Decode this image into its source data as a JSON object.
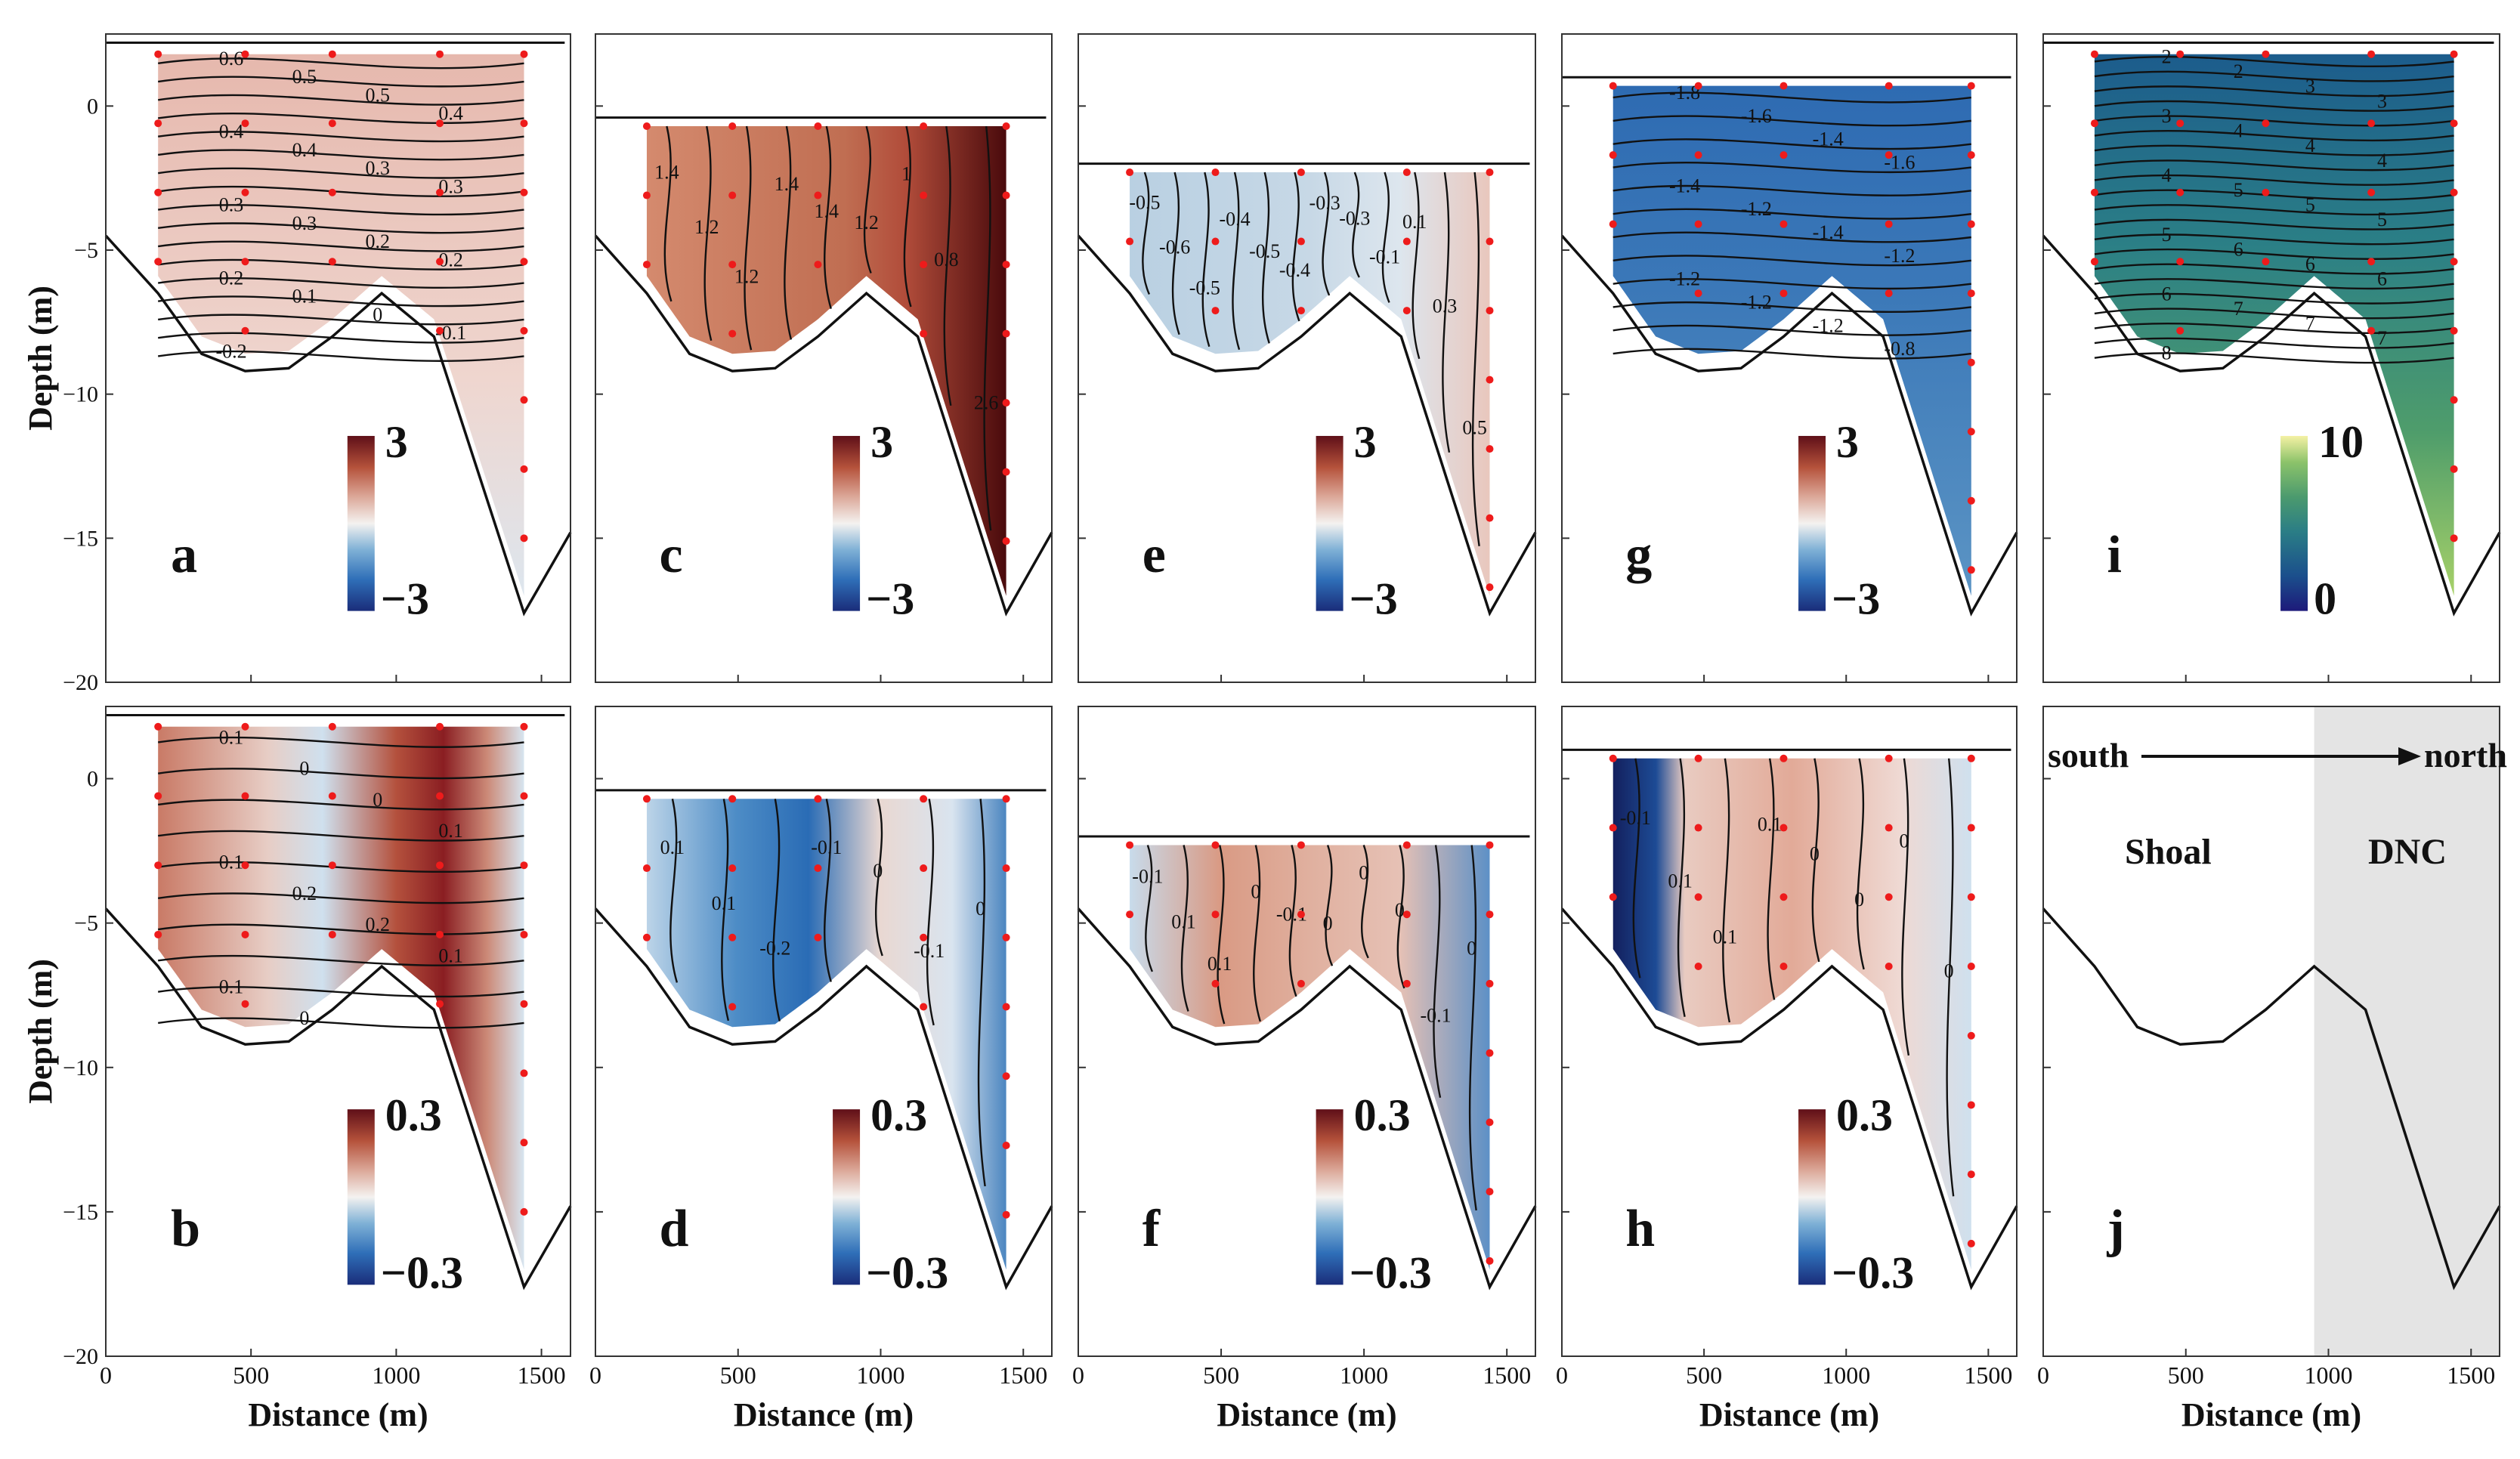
{
  "chart_data": [
    {
      "id": "a",
      "label": "a",
      "type": "heatmap",
      "section": "section-1",
      "water_level": 2.2,
      "variable": "diverging",
      "cbar": {
        "max": "3",
        "min": "−3"
      },
      "contour_labels": [
        "0.6",
        "0.5",
        "0.5",
        "0.4",
        "0.4",
        "0.4",
        "0.3",
        "0.3",
        "0.3",
        "0.3",
        "0.2",
        "0.2",
        "0.2",
        "0.1",
        "0",
        "-0.1",
        "-0.2"
      ]
    },
    {
      "id": "b",
      "label": "b",
      "type": "heatmap",
      "section": "section-1",
      "water_level": 2.2,
      "variable": "diverging-small",
      "cbar": {
        "max": "0.3",
        "min": "−0.3"
      },
      "contour_labels": [
        "0.1",
        "0",
        "0",
        "0.1",
        "0.1",
        "0.2",
        "0.2",
        "0.1",
        "0.1",
        "0"
      ]
    },
    {
      "id": "c",
      "label": "c",
      "type": "heatmap",
      "section": "section-2",
      "water_level": -0.4,
      "variable": "diverging",
      "cbar": {
        "max": "3",
        "min": "−3"
      },
      "contour_labels": [
        "1.4",
        "1.2",
        "1.2",
        "1.4",
        "1.4",
        "1.2",
        "1",
        "0.8",
        "2.6"
      ]
    },
    {
      "id": "d",
      "label": "d",
      "type": "heatmap",
      "section": "section-2",
      "water_level": -0.4,
      "variable": "diverging-small",
      "cbar": {
        "max": "0.3",
        "min": "−0.3"
      },
      "contour_labels": [
        "0.1",
        "0.1",
        "-0.2",
        "-0.1",
        "0",
        "-0.1",
        "0"
      ]
    },
    {
      "id": "e",
      "label": "e",
      "type": "heatmap",
      "section": "section-3",
      "water_level": -2.0,
      "variable": "diverging",
      "cbar": {
        "max": "3",
        "min": "−3"
      },
      "contour_labels": [
        "-0.5",
        "-0.6",
        "-0.5",
        "-0.4",
        "-0.5",
        "-0.4",
        "-0.3",
        "-0.3",
        "-0.1",
        "0.1",
        "0.3",
        "0.5"
      ]
    },
    {
      "id": "f",
      "label": "f",
      "type": "heatmap",
      "section": "section-3",
      "water_level": -2.0,
      "variable": "diverging-small",
      "cbar": {
        "max": "0.3",
        "min": "−0.3"
      },
      "contour_labels": [
        "-0.1",
        "0.1",
        "0.1",
        "0",
        "-0.1",
        "0",
        "0",
        "0",
        "-0.1",
        "0"
      ]
    },
    {
      "id": "g",
      "label": "g",
      "type": "heatmap",
      "section": "section-4",
      "water_level": 1.0,
      "variable": "diverging",
      "cbar": {
        "max": "3",
        "min": "−3"
      },
      "contour_labels": [
        "-1.8",
        "-1.6",
        "-1.4",
        "-1.6",
        "-1.4",
        "-1.2",
        "-1.4",
        "-1.2",
        "-1.2",
        "-1.2",
        "-1.2",
        "-0.8"
      ]
    },
    {
      "id": "h",
      "label": "h",
      "type": "heatmap",
      "section": "section-4",
      "water_level": 1.0,
      "variable": "diverging-small",
      "cbar": {
        "max": "0.3",
        "min": "−0.3"
      },
      "contour_labels": [
        "-0.1",
        "0.1",
        "0.1",
        "0.1",
        "0",
        "0",
        "0",
        "0"
      ]
    },
    {
      "id": "i",
      "label": "i",
      "type": "heatmap",
      "section": "section-1",
      "water_level": 2.2,
      "variable": "sequential",
      "cbar": {
        "max": "10",
        "min": "0"
      },
      "contour_labels": [
        "2",
        "2",
        "3",
        "3",
        "3",
        "4",
        "4",
        "4",
        "4",
        "5",
        "5",
        "5",
        "5",
        "6",
        "6",
        "6",
        "6",
        "7",
        "7",
        "7",
        "8"
      ]
    },
    {
      "id": "j",
      "label": "j",
      "type": "diagram",
      "section": "bathymetry",
      "annotations": {
        "south": "south",
        "north": "north",
        "shoal": "Shoal",
        "dnc": "DNC"
      }
    }
  ],
  "axes": {
    "xlabel": "Distance (m)",
    "ylabel": "Depth (m)",
    "xlim": [
      0,
      1600
    ],
    "ylim": [
      -20,
      2.5
    ],
    "xticks": [
      "0",
      "500",
      "1000",
      "1500"
    ],
    "yticks": [
      "0",
      "−5",
      "−10",
      "−15",
      "−20"
    ]
  },
  "stations_x": [
    180,
    480,
    780,
    1150,
    1440
  ],
  "bathymetry": {
    "x": [
      0,
      180,
      330,
      480,
      630,
      780,
      950,
      1130,
      1440,
      1600
    ],
    "depth": [
      -4.5,
      -6.5,
      -8.6,
      -9.2,
      -9.1,
      -8.0,
      -6.5,
      -8.0,
      -17.6,
      -14.8
    ]
  },
  "colors": {
    "diverging": [
      "#1a2d7a",
      "#2f6fb8",
      "#7fb1d6",
      "#f4f2f0",
      "#dca99a",
      "#b5523b",
      "#5f0f18"
    ],
    "sequential": [
      "#1d1a7a",
      "#1b4f8c",
      "#2a7d86",
      "#4b9a6e",
      "#8cc36a",
      "#f4f1a4"
    ],
    "dnc_shade": "#e4e4e4",
    "station_dot": "#ee1b1b",
    "annotation": "#1010ee"
  }
}
